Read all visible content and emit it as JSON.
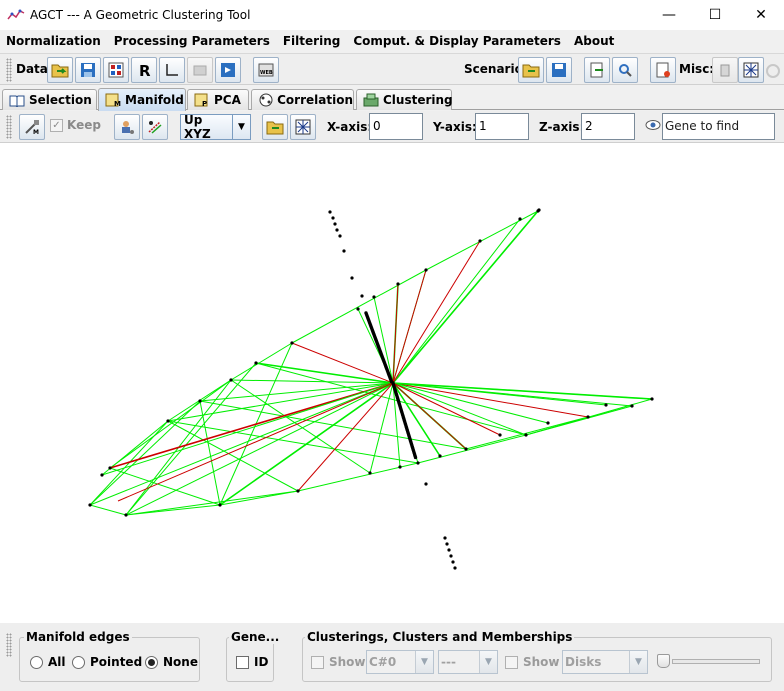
{
  "window": {
    "title": "AGCT --- A Geometric Clustering Tool"
  },
  "menu": [
    {
      "label": "Normalization"
    },
    {
      "label": "Processing Parameters"
    },
    {
      "label": "Filtering"
    },
    {
      "label": "Comput. & Display Parameters"
    },
    {
      "label": "About"
    }
  ],
  "toolbar": {
    "data_label": "Data:",
    "scenario_label": "Scenario:",
    "misc_label": "Misc:"
  },
  "tabs": [
    {
      "label": "Selection",
      "icon": "book-icon"
    },
    {
      "label": "Manifold",
      "icon": "manifold-icon",
      "selected": true
    },
    {
      "label": "PCA",
      "icon": "pca-icon"
    },
    {
      "label": "Correlation",
      "icon": "correlation-icon"
    },
    {
      "label": "Clustering",
      "icon": "clustering-icon"
    }
  ],
  "view_toolbar": {
    "keep_label": "Keep",
    "orientation_value": "Up XYZ",
    "x_axis_label": "X-axis:",
    "x_axis_value": "0",
    "y_axis_label": "Y-axis:",
    "y_axis_value": "1",
    "z_axis_label": "Z-axis:",
    "z_axis_value": "2",
    "gene_search_placeholder": "Gene to find"
  },
  "bottom": {
    "manifold_edges": {
      "title": "Manifold edges",
      "options": [
        "All",
        "Pointed",
        "None"
      ],
      "selected": "None"
    },
    "gene": {
      "title": "Gene...",
      "id_label": "ID"
    },
    "clusterings": {
      "title": "Clusterings, Clusters and Memberships",
      "show_label_1": "Show",
      "clustering_value": "C#0",
      "cluster_value": "---",
      "show_label_2": "Show",
      "display_value": "Disks"
    }
  },
  "colors": {
    "edge_green": "#00ee00",
    "edge_red": "#cc0000",
    "point": "#000000",
    "tab_selected": "#c9dcf1"
  }
}
